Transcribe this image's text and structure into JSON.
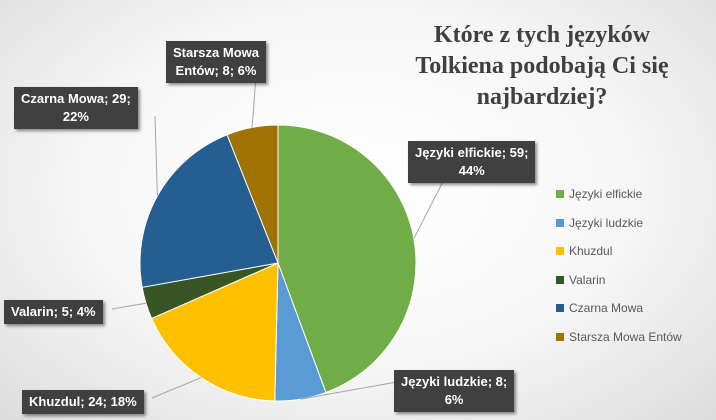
{
  "chart_data": {
    "type": "pie",
    "title": "Które z tych języków Tolkiena podobają Ci się najbardziej?",
    "categories": [
      "Języki elfickie",
      "Języki ludzkie",
      "Khuzdul",
      "Valarin",
      "Czarna Mowa",
      "Starsza Mowa Entów"
    ],
    "values": [
      59,
      8,
      24,
      5,
      29,
      8
    ],
    "percents": [
      "44%",
      "6%",
      "18%",
      "4%",
      "22%",
      "6%"
    ],
    "colors": [
      "#70ad47",
      "#5b9bd5",
      "#ffc000",
      "#375623",
      "#255e91",
      "#9e7203"
    ],
    "data_labels": [
      "Języki elfickie; 59; 44%",
      "Języki ludzkie; 8; 6%",
      "Khuzdul; 24; 18%",
      "Valarin; 5; 4%",
      "Czarna Mowa; 29; 22%",
      "Starsza Mowa Entów; 8; 6%"
    ],
    "legend_position": "right"
  }
}
